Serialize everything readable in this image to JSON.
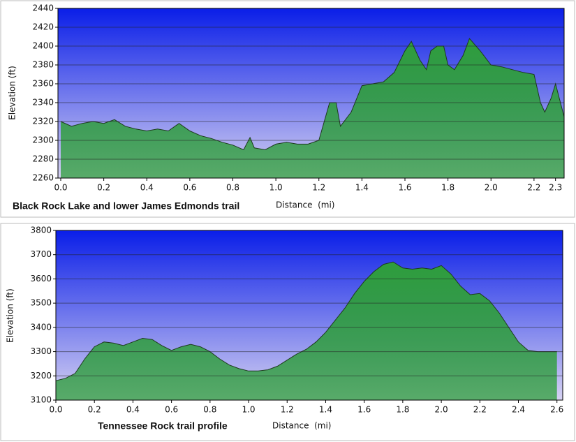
{
  "chart_data": [
    {
      "type": "area",
      "title": "Black Rock Lake and lower James Edmonds trail",
      "x_label": "Distance  (mi)",
      "y_label": "Elevation (ft)",
      "x": [
        0,
        0.05,
        0.1,
        0.15,
        0.2,
        0.25,
        0.3,
        0.35,
        0.4,
        0.45,
        0.5,
        0.55,
        0.6,
        0.65,
        0.7,
        0.75,
        0.8,
        0.85,
        0.88,
        0.9,
        0.95,
        1.0,
        1.05,
        1.1,
        1.15,
        1.2,
        1.25,
        1.28,
        1.3,
        1.35,
        1.4,
        1.45,
        1.5,
        1.55,
        1.6,
        1.63,
        1.67,
        1.7,
        1.72,
        1.75,
        1.78,
        1.8,
        1.83,
        1.87,
        1.9,
        1.95,
        2.0,
        2.05,
        2.1,
        2.15,
        2.2,
        2.23,
        2.25,
        2.28,
        2.3,
        2.34
      ],
      "values": [
        2320,
        2315,
        2318,
        2320,
        2318,
        2322,
        2315,
        2312,
        2310,
        2312,
        2310,
        2318,
        2310,
        2305,
        2302,
        2298,
        2295,
        2290,
        2303,
        2292,
        2290,
        2296,
        2298,
        2296,
        2296,
        2300,
        2340,
        2340,
        2315,
        2330,
        2358,
        2360,
        2362,
        2372,
        2395,
        2405,
        2385,
        2375,
        2395,
        2400,
        2400,
        2380,
        2375,
        2390,
        2408,
        2395,
        2380,
        2378,
        2375,
        2372,
        2370,
        2340,
        2330,
        2345,
        2360,
        2325
      ],
      "color": "#2f9e3c",
      "xlim": [
        0,
        2.34
      ],
      "ylim": [
        2260,
        2440
      ],
      "xticks": [
        {
          "value": 0,
          "label": "0.0"
        },
        0.2,
        0.4,
        0.6,
        0.8,
        {
          "value": 1,
          "label": "1.0"
        },
        1.2,
        1.4,
        1.6,
        1.8,
        {
          "value": 2,
          "label": "2.0"
        },
        2.2,
        2.3
      ],
      "yticks": [
        2260,
        2280,
        2300,
        2320,
        2340,
        2360,
        2380,
        2400,
        2420,
        2440
      ],
      "grid": true
    },
    {
      "type": "area",
      "title": "Tennessee Rock trail profile",
      "x_label": "Distance  (mi)",
      "y_label": "Elevation (ft)",
      "x": [
        0,
        0.05,
        0.1,
        0.15,
        0.2,
        0.25,
        0.3,
        0.35,
        0.4,
        0.45,
        0.5,
        0.55,
        0.6,
        0.65,
        0.7,
        0.75,
        0.8,
        0.85,
        0.9,
        0.95,
        1.0,
        1.05,
        1.1,
        1.15,
        1.2,
        1.25,
        1.3,
        1.35,
        1.4,
        1.45,
        1.5,
        1.55,
        1.6,
        1.65,
        1.7,
        1.75,
        1.8,
        1.85,
        1.9,
        1.95,
        2.0,
        2.05,
        2.1,
        2.15,
        2.2,
        2.25,
        2.3,
        2.35,
        2.4,
        2.45,
        2.5,
        2.55,
        2.6
      ],
      "values": [
        3180,
        3190,
        3210,
        3270,
        3320,
        3340,
        3335,
        3325,
        3340,
        3355,
        3350,
        3325,
        3305,
        3320,
        3330,
        3320,
        3300,
        3270,
        3245,
        3230,
        3220,
        3220,
        3225,
        3240,
        3265,
        3290,
        3310,
        3340,
        3380,
        3430,
        3480,
        3540,
        3590,
        3630,
        3660,
        3670,
        3645,
        3640,
        3645,
        3640,
        3655,
        3620,
        3570,
        3535,
        3540,
        3510,
        3460,
        3400,
        3340,
        3305,
        3300,
        3300,
        3300
      ],
      "color": "#2f9e3c",
      "xlim": [
        0,
        2.63
      ],
      "ylim": [
        3100,
        3800
      ],
      "xticks": [
        {
          "value": 0,
          "label": "0.0"
        },
        0.2,
        0.4,
        0.6,
        0.8,
        {
          "value": 1,
          "label": "1.0"
        },
        1.2,
        1.4,
        1.6,
        1.8,
        {
          "value": 2,
          "label": "2.0"
        },
        2.2,
        2.4,
        2.6
      ],
      "yticks": [
        3100,
        3200,
        3300,
        3400,
        3500,
        3600,
        3700,
        3800
      ],
      "grid": true
    }
  ]
}
